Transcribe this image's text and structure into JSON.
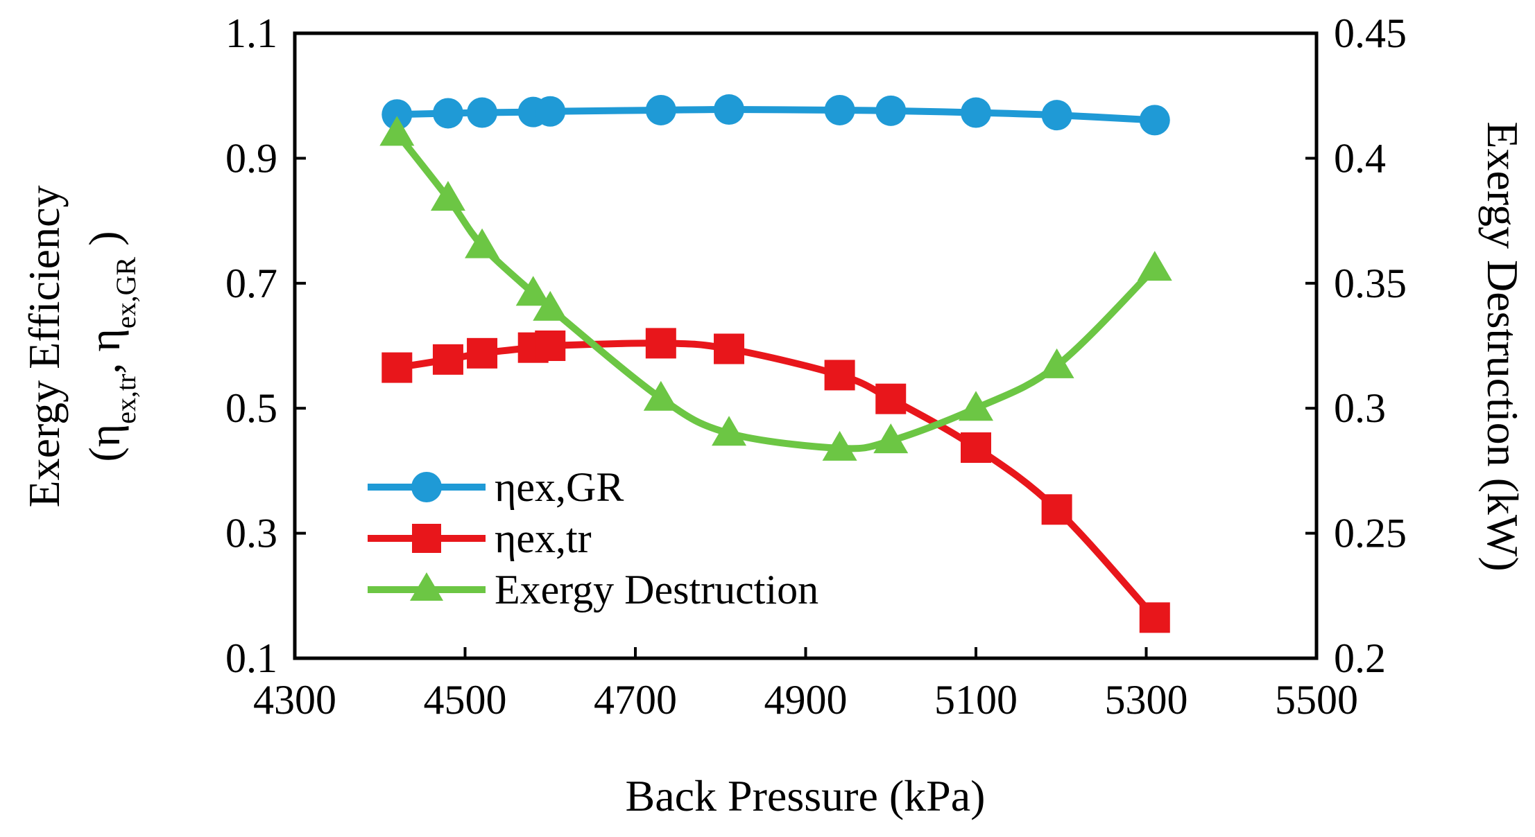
{
  "chart_data": {
    "type": "line",
    "title": "",
    "xlabel": "Back Pressure (kPa)",
    "ylabel_left": {
      "line1": "Exergy Efficiency",
      "eta1": "η",
      "sub1": "ex,tr",
      "sep": ", ",
      "eta2": "η",
      "sub2": "ex,GR",
      "open": "(",
      "close": " )"
    },
    "ylabel_right": "Exergy Destruction (kW)",
    "xlim": [
      4300,
      5500
    ],
    "ylim_left": [
      0.1,
      1.1
    ],
    "ylim_right": [
      0.2,
      0.45
    ],
    "x_ticks": [
      "4300",
      "4500",
      "4700",
      "4900",
      "5100",
      "5300",
      "5500"
    ],
    "y_left_ticks": [
      "0.1",
      "0.3",
      "0.5",
      "0.7",
      "0.9",
      "1.1"
    ],
    "y_right_ticks": [
      "0.2",
      "0.25",
      "0.3",
      "0.35",
      "0.4",
      "0.45"
    ],
    "x": [
      4420,
      4480,
      4520,
      4580,
      4600,
      4730,
      4810,
      4940,
      5000,
      5100,
      5195,
      5310
    ],
    "series": [
      {
        "name": "ηex,GR",
        "axis": "left",
        "color": "#1f9ad6",
        "marker": "circle",
        "values": [
          0.97,
          0.972,
          0.973,
          0.974,
          0.975,
          0.977,
          0.978,
          0.977,
          0.976,
          0.973,
          0.969,
          0.961
        ]
      },
      {
        "name": "ηex,tr",
        "axis": "left",
        "color": "#e8161b",
        "marker": "square",
        "values": [
          0.565,
          0.578,
          0.588,
          0.597,
          0.6,
          0.604,
          0.595,
          0.553,
          0.515,
          0.437,
          0.338,
          0.165
        ]
      },
      {
        "name": "Exergy Destruction",
        "axis": "right",
        "color": "#6cc644",
        "marker": "triangle",
        "values": [
          0.41,
          0.384,
          0.365,
          0.346,
          0.34,
          0.304,
          0.29,
          0.284,
          0.287,
          0.3,
          0.317,
          0.356
        ]
      }
    ],
    "legend_position": "center-left"
  }
}
